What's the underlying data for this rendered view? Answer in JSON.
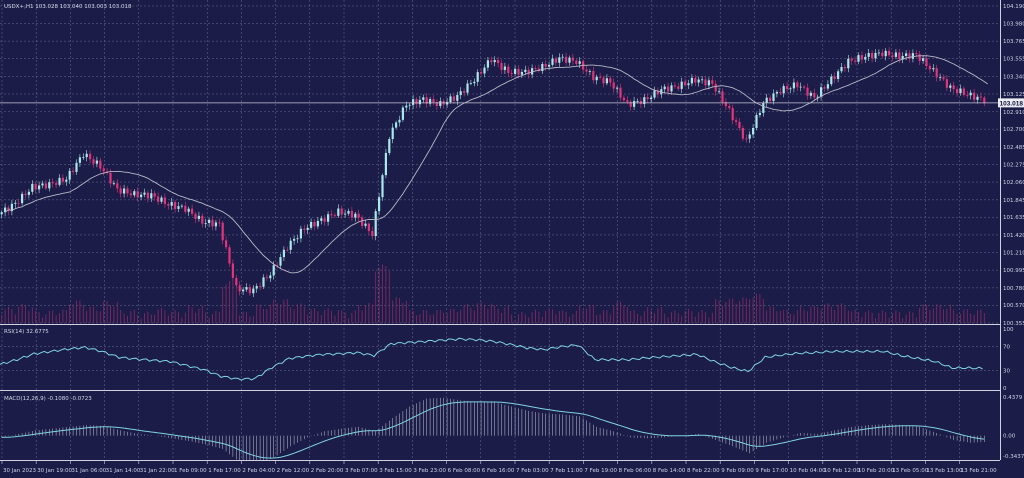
{
  "header": {
    "symbol_line": "USDX+,H1  103.028 103.040 103.003 103.018"
  },
  "current_price": "103.018",
  "colors": {
    "background": "#1b1c47",
    "up": "#a9e8ea",
    "down": "#e0357a",
    "ma": "#b8b8c8",
    "grid": "#6c6f95",
    "indicator": "#7fd3e0"
  },
  "chart_data": [
    {
      "type": "candlestick",
      "title": "USDX+,H1",
      "y_ticks": [
        "104.190",
        "103.980",
        "103.765",
        "103.555",
        "103.340",
        "103.125",
        "102.910",
        "102.700",
        "102.485",
        "102.275",
        "102.060",
        "101.845",
        "101.635",
        "101.420",
        "101.210",
        "100.995",
        "100.780",
        "100.570",
        "100.355"
      ],
      "ylim": [
        100.355,
        104.19
      ],
      "x_ticks": [
        "30 Jan 2023",
        "30 Jan 19:00",
        "31 Jan 06:00",
        "31 Jan 14:00",
        "31 Jan 22:00",
        "1 Feb 09:00",
        "1 Feb 17:00",
        "2 Feb 04:00",
        "2 Feb 12:00",
        "2 Feb 20:00",
        "3 Feb 07:00",
        "3 Feb 15:00",
        "3 Feb 23:00",
        "6 Feb 08:00",
        "6 Feb 16:00",
        "7 Feb 03:00",
        "7 Feb 11:00",
        "7 Feb 19:00",
        "8 Feb 06:00",
        "8 Feb 14:00",
        "8 Feb 22:00",
        "9 Feb 09:00",
        "9 Feb 17:00",
        "10 Feb 04:00",
        "10 Feb 12:00",
        "10 Feb 20:00",
        "13 Feb 05:00",
        "13 Feb 13:00",
        "13 Feb 21:00"
      ],
      "approx_close_samples": [
        101.67,
        101.8,
        102.0,
        102.03,
        102.1,
        102.4,
        102.25,
        101.97,
        101.91,
        101.9,
        101.79,
        101.74,
        101.58,
        101.55,
        100.77,
        100.75,
        100.95,
        101.28,
        101.5,
        101.6,
        101.7,
        101.66,
        101.43,
        102.62,
        103.0,
        103.06,
        103.0,
        103.1,
        103.3,
        103.55,
        103.39,
        103.39,
        103.45,
        103.56,
        103.52,
        103.33,
        103.27,
        103.0,
        103.05,
        103.18,
        103.22,
        103.3,
        103.25,
        102.92,
        102.55,
        103.02,
        103.17,
        103.24,
        103.08,
        103.3,
        103.52,
        103.58,
        103.62,
        103.58,
        103.6,
        103.4,
        103.2,
        103.12,
        103.05
      ],
      "grid": true,
      "moving_average": true
    },
    {
      "type": "line",
      "title": "RSI(14) 32.6775",
      "y_ticks": [
        "100",
        "70",
        "30",
        "0"
      ],
      "ylim": [
        0,
        100
      ],
      "values": [
        40,
        48,
        58,
        62,
        66,
        69,
        62,
        52,
        49,
        47,
        45,
        38,
        31,
        20,
        15,
        16,
        35,
        50,
        54,
        57,
        58,
        60,
        55,
        75,
        77,
        79,
        81,
        83,
        82,
        79,
        74,
        68,
        65,
        70,
        73,
        48,
        48,
        48,
        51,
        53,
        55,
        57,
        45,
        35,
        28,
        52,
        56,
        59,
        60,
        62,
        62,
        62,
        62,
        55,
        50,
        45,
        34,
        34,
        33
      ]
    },
    {
      "type": "bar",
      "title": "MACD(12,26,9) -0.1080 -0.0723",
      "y_ticks": [
        "0.4379",
        "0.00",
        "-0.3437"
      ],
      "ylim": [
        -0.3437,
        0.4379
      ],
      "values": [
        -0.02,
        0.02,
        0.06,
        0.08,
        0.1,
        0.12,
        0.11,
        0.06,
        0.02,
        0.0,
        -0.03,
        -0.06,
        -0.1,
        -0.15,
        -0.3,
        -0.32,
        -0.25,
        -0.12,
        -0.02,
        0.05,
        0.08,
        0.1,
        0.05,
        0.2,
        0.33,
        0.42,
        0.43,
        0.4,
        0.38,
        0.38,
        0.33,
        0.28,
        0.25,
        0.24,
        0.22,
        0.1,
        0.05,
        -0.02,
        -0.03,
        -0.02,
        0.0,
        0.02,
        -0.05,
        -0.12,
        -0.2,
        -0.08,
        -0.02,
        0.03,
        0.02,
        0.06,
        0.1,
        0.12,
        0.13,
        0.12,
        0.1,
        0.03,
        -0.05,
        -0.08,
        -0.07
      ]
    }
  ]
}
